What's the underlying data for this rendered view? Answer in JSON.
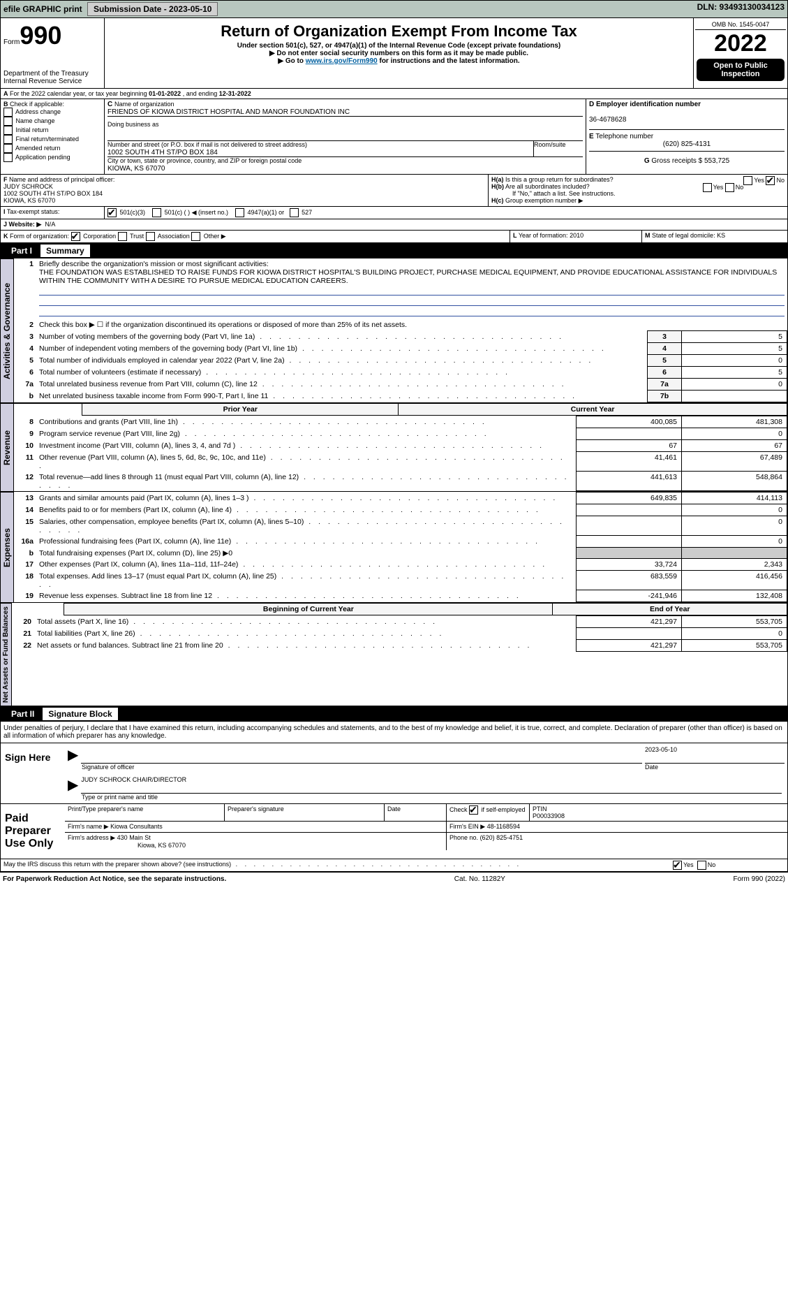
{
  "topbar": {
    "efile": "efile GRAPHIC print",
    "submission": "Submission Date - 2023-05-10",
    "dln": "DLN: 93493130034123"
  },
  "header": {
    "form_prefix": "Form",
    "form_num": "990",
    "title": "Return of Organization Exempt From Income Tax",
    "sub1": "Under section 501(c), 527, or 4947(a)(1) of the Internal Revenue Code (except private foundations)",
    "sub2": "▶ Do not enter social security numbers on this form as it may be made public.",
    "sub3_pre": "▶ Go to ",
    "sub3_link": "www.irs.gov/Form990",
    "sub3_post": " for instructions and the latest information.",
    "dept": "Department of the Treasury",
    "irs": "Internal Revenue Service",
    "omb": "OMB No. 1545-0047",
    "year": "2022",
    "pub": "Open to Public Inspection"
  },
  "A": {
    "pre": "For the 2022 calendar year, or tax year beginning ",
    "begin": "01-01-2022",
    "mid": " , and ending ",
    "end": "12-31-2022"
  },
  "B": {
    "label": "Check if applicable:",
    "items": [
      "Address change",
      "Name change",
      "Initial return",
      "Final return/terminated",
      "Amended return",
      "Application pending"
    ]
  },
  "C": {
    "name_lbl": "Name of organization",
    "name": "FRIENDS OF KIOWA DISTRICT HOSPITAL AND MANOR FOUNDATION INC",
    "dba_lbl": "Doing business as",
    "dba": "",
    "addr_lbl": "Number and street (or P.O. box if mail is not delivered to street address)",
    "room_lbl": "Room/suite",
    "addr": "1002 SOUTH 4TH ST/PO BOX 184",
    "city_lbl": "City or town, state or province, country, and ZIP or foreign postal code",
    "city": "KIOWA, KS  67070"
  },
  "D": {
    "lbl": "Employer identification number",
    "val": "36-4678628"
  },
  "E": {
    "lbl": "Telephone number",
    "val": "(620) 825-4131"
  },
  "G": {
    "lbl": "Gross receipts $",
    "val": "553,725"
  },
  "F": {
    "lbl": "Name and address of principal officer:",
    "name": "JUDY SCHROCK",
    "addr": "1002 SOUTH 4TH ST/PO BOX 184",
    "city": "KIOWA, KS  67070"
  },
  "H": {
    "a": "Is this a group return for subordinates?",
    "b": "Are all subordinates included?",
    "b2": "If \"No,\" attach a list. See instructions.",
    "c": "Group exemption number ▶",
    "yes": "Yes",
    "no": "No"
  },
  "I": {
    "lbl": "Tax-exempt status:",
    "c3": "501(c)(3)",
    "c": "501(c) (   ) ◀ (insert no.)",
    "a1": "4947(a)(1) or",
    "527": "527"
  },
  "J": {
    "lbl": "Website: ▶",
    "val": "N/A"
  },
  "K": {
    "lbl": "Form of organization:",
    "corp": "Corporation",
    "trust": "Trust",
    "assoc": "Association",
    "other": "Other ▶"
  },
  "L": {
    "lbl": "Year of formation:",
    "val": "2010"
  },
  "M": {
    "lbl": "State of legal domicile:",
    "val": "KS"
  },
  "partI": {
    "num": "Part I",
    "title": "Summary"
  },
  "summary": {
    "q1": "Briefly describe the organization's mission or most significant activities:",
    "mission": "THE FOUNDATION WAS ESTABLISHED TO RAISE FUNDS FOR KIOWA DISTRICT HOSPITAL'S BUILDING PROJECT, PURCHASE MEDICAL EQUIPMENT, AND PROVIDE EDUCATIONAL ASSISTANCE FOR INDIVIDUALS WITHIN THE COMMUNITY WITH A DESIRE TO PURSUE MEDICAL EDUCATION CAREERS.",
    "q2": "Check this box ▶ ☐ if the organization discontinued its operations or disposed of more than 25% of its net assets.",
    "lines_ag": [
      {
        "n": "3",
        "t": "Number of voting members of the governing body (Part VI, line 1a)",
        "box": "3",
        "v": "5"
      },
      {
        "n": "4",
        "t": "Number of independent voting members of the governing body (Part VI, line 1b)",
        "box": "4",
        "v": "5"
      },
      {
        "n": "5",
        "t": "Total number of individuals employed in calendar year 2022 (Part V, line 2a)",
        "box": "5",
        "v": "0"
      },
      {
        "n": "6",
        "t": "Total number of volunteers (estimate if necessary)",
        "box": "6",
        "v": "5"
      },
      {
        "n": "7a",
        "t": "Total unrelated business revenue from Part VIII, column (C), line 12",
        "box": "7a",
        "v": "0"
      },
      {
        "n": "b",
        "t": "Net unrelated business taxable income from Form 990-T, Part I, line 11",
        "box": "7b",
        "v": ""
      }
    ],
    "col_prior": "Prior Year",
    "col_curr": "Current Year",
    "revenue": [
      {
        "n": "8",
        "t": "Contributions and grants (Part VIII, line 1h)",
        "p": "400,085",
        "c": "481,308"
      },
      {
        "n": "9",
        "t": "Program service revenue (Part VIII, line 2g)",
        "p": "",
        "c": "0"
      },
      {
        "n": "10",
        "t": "Investment income (Part VIII, column (A), lines 3, 4, and 7d )",
        "p": "67",
        "c": "67"
      },
      {
        "n": "11",
        "t": "Other revenue (Part VIII, column (A), lines 5, 6d, 8c, 9c, 10c, and 11e)",
        "p": "41,461",
        "c": "67,489"
      },
      {
        "n": "12",
        "t": "Total revenue—add lines 8 through 11 (must equal Part VIII, column (A), line 12)",
        "p": "441,613",
        "c": "548,864"
      }
    ],
    "expenses": [
      {
        "n": "13",
        "t": "Grants and similar amounts paid (Part IX, column (A), lines 1–3 )",
        "p": "649,835",
        "c": "414,113"
      },
      {
        "n": "14",
        "t": "Benefits paid to or for members (Part IX, column (A), line 4)",
        "p": "",
        "c": "0"
      },
      {
        "n": "15",
        "t": "Salaries, other compensation, employee benefits (Part IX, column (A), lines 5–10)",
        "p": "",
        "c": "0"
      },
      {
        "n": "16a",
        "t": "Professional fundraising fees (Part IX, column (A), line 11e)",
        "p": "",
        "c": "0"
      },
      {
        "n": "b",
        "t": "Total fundraising expenses (Part IX, column (D), line 25) ▶0",
        "p": null,
        "c": null
      },
      {
        "n": "17",
        "t": "Other expenses (Part IX, column (A), lines 11a–11d, 11f–24e)",
        "p": "33,724",
        "c": "2,343"
      },
      {
        "n": "18",
        "t": "Total expenses. Add lines 13–17 (must equal Part IX, column (A), line 25)",
        "p": "683,559",
        "c": "416,456"
      },
      {
        "n": "19",
        "t": "Revenue less expenses. Subtract line 18 from line 12",
        "p": "-241,946",
        "c": "132,408"
      }
    ],
    "col_begin": "Beginning of Current Year",
    "col_end": "End of Year",
    "netassets": [
      {
        "n": "20",
        "t": "Total assets (Part X, line 16)",
        "p": "421,297",
        "c": "553,705"
      },
      {
        "n": "21",
        "t": "Total liabilities (Part X, line 26)",
        "p": "",
        "c": "0"
      },
      {
        "n": "22",
        "t": "Net assets or fund balances. Subtract line 21 from line 20",
        "p": "421,297",
        "c": "553,705"
      }
    ],
    "tabs": {
      "ag": "Activities & Governance",
      "rev": "Revenue",
      "exp": "Expenses",
      "net": "Net Assets or Fund Balances"
    }
  },
  "partII": {
    "num": "Part II",
    "title": "Signature Block",
    "decl": "Under penalties of perjury, I declare that I have examined this return, including accompanying schedules and statements, and to the best of my knowledge and belief, it is true, correct, and complete. Declaration of preparer (other than officer) is based on all information of which preparer has any knowledge."
  },
  "sign": {
    "here": "Sign Here",
    "sig_lbl": "Signature of officer",
    "date_lbl": "Date",
    "date": "2023-05-10",
    "name": "JUDY SCHROCK  CHAIR/DIRECTOR",
    "name_lbl": "Type or print name and title"
  },
  "prep": {
    "lbl": "Paid Preparer Use Only",
    "h1": "Print/Type preparer's name",
    "h2": "Preparer's signature",
    "h3": "Date",
    "h4_pre": "Check",
    "h4": "if self-employed",
    "h5": "PTIN",
    "ptin": "P00033908",
    "firm_lbl": "Firm's name  ▶",
    "firm": "Kiowa Consultants",
    "ein_lbl": "Firm's EIN ▶",
    "ein": "48-1168594",
    "addr_lbl": "Firm's address ▶",
    "addr": "430 Main St",
    "addr2": "Kiowa, KS  67070",
    "phone_lbl": "Phone no.",
    "phone": "(620) 825-4751"
  },
  "discuss": "May the IRS discuss this return with the preparer shown above? (see instructions)",
  "footer": {
    "l": "For Paperwork Reduction Act Notice, see the separate instructions.",
    "m": "Cat. No. 11282Y",
    "r": "Form 990 (2022)"
  }
}
